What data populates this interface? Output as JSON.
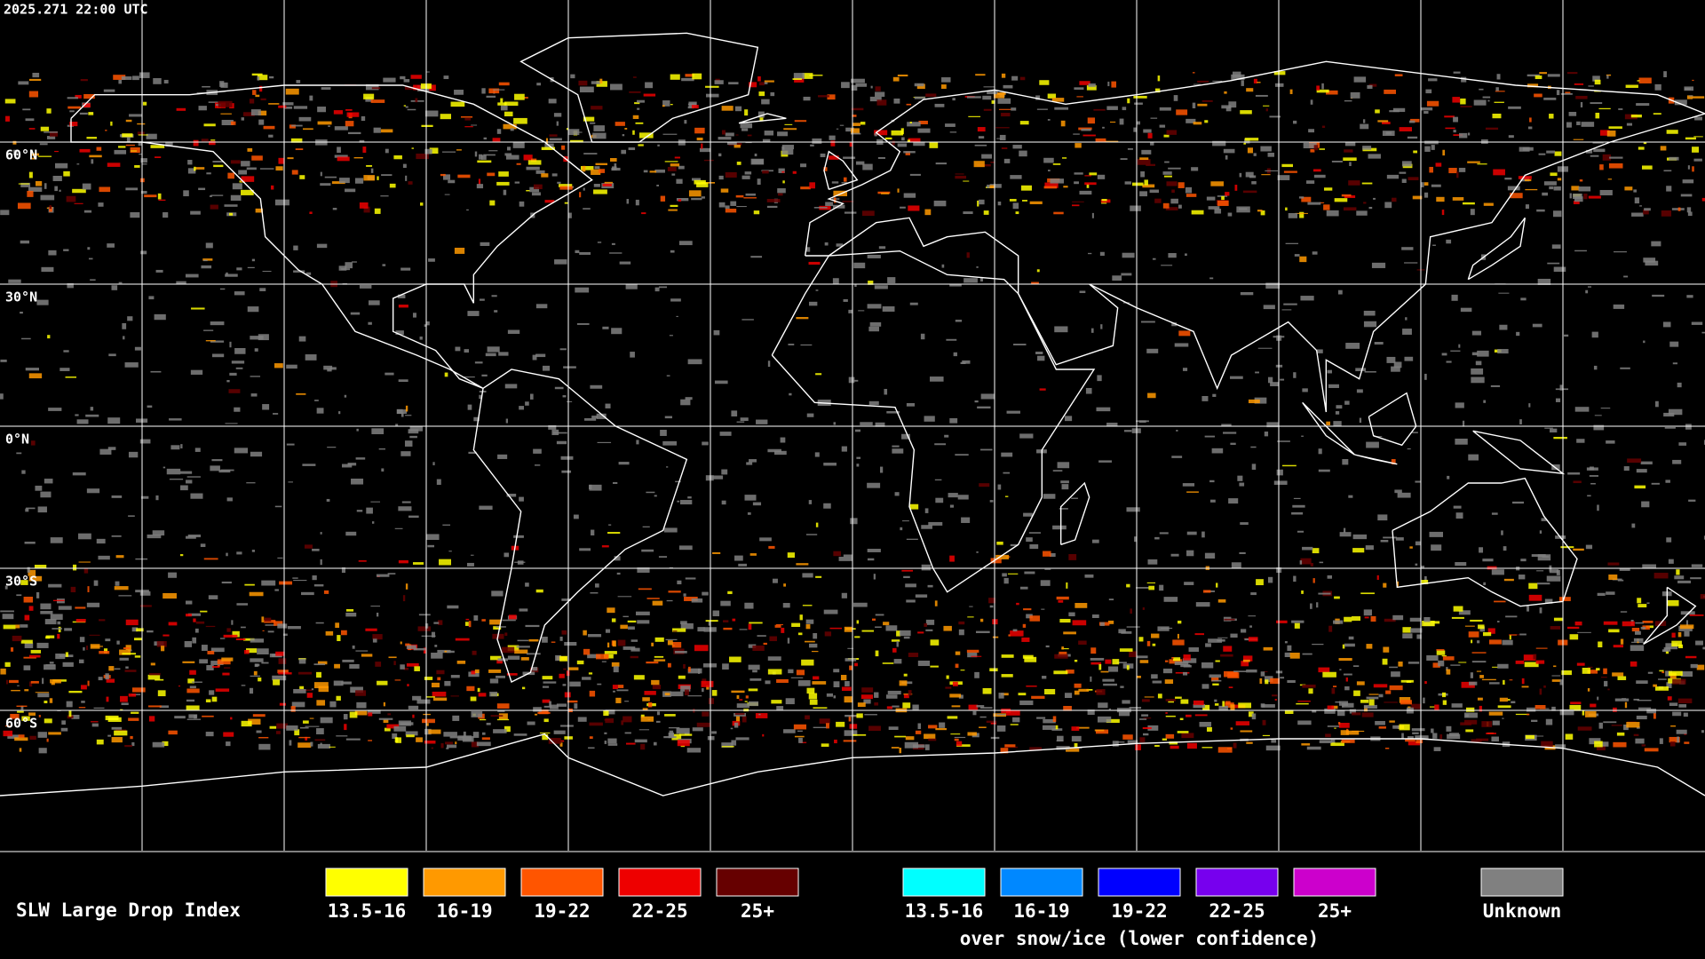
{
  "timestamp": "2025.271 22:00 UTC",
  "latitude_labels": [
    "60°N",
    "30°N",
    "0°N",
    "30°S",
    "60°S"
  ],
  "legend": {
    "title": "SLW Large Drop Index",
    "entries": [
      {
        "label": "13.5-16",
        "color": "#ffff00"
      },
      {
        "label": "16-19",
        "color": "#ff9900"
      },
      {
        "label": "19-22",
        "color": "#ff5500"
      },
      {
        "label": "22-25",
        "color": "#ee0000"
      },
      {
        "label": "25+",
        "color": "#660000"
      }
    ],
    "snow_ice_entries": [
      {
        "label": "13.5-16",
        "color": "#00ffff"
      },
      {
        "label": "16-19",
        "color": "#0088ff"
      },
      {
        "label": "19-22",
        "color": "#0000ff"
      },
      {
        "label": "22-25",
        "color": "#7700ee"
      },
      {
        "label": "25+",
        "color": "#cc00cc"
      }
    ],
    "snow_ice_caption": "over snow/ice (lower confidence)",
    "unknown": {
      "label": "Unknown",
      "color": "#808080"
    }
  }
}
